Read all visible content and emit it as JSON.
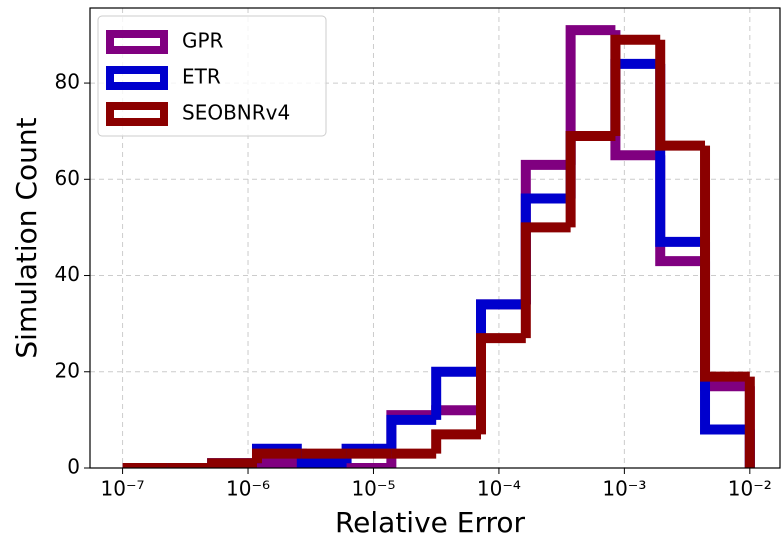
{
  "chart_data": {
    "type": "step-histogram",
    "xlabel": "Relative Error",
    "ylabel": "Simulation Count",
    "xscale": "log",
    "grid": true,
    "legend": "upper left",
    "bins": [
      1e-07,
      2.276e-07,
      5.179e-07,
      1.179e-06,
      2.683e-06,
      6.105e-06,
      1.389e-05,
      3.162e-05,
      7.197e-05,
      0.0001638,
      0.0003728,
      0.0008483,
      0.001931,
      0.004394,
      0.01
    ],
    "series": [
      {
        "name": "GPR",
        "color": "#800080",
        "values": [
          0,
          0,
          1,
          1,
          1,
          0,
          11,
          12,
          34,
          63,
          91,
          65,
          43,
          17
        ]
      },
      {
        "name": "ETR",
        "color": "#0000cd",
        "values": [
          0,
          0,
          1,
          4,
          1,
          4,
          10,
          20,
          34,
          56,
          69,
          84,
          47,
          8
        ]
      },
      {
        "name": "SEOBNRv4",
        "color": "#8b0000",
        "values": [
          0,
          0,
          1,
          3,
          3,
          3,
          3,
          7,
          27,
          50,
          69,
          89,
          67,
          19
        ]
      }
    ],
    "xlim": [
      5.5e-08,
      0.0174
    ],
    "xticks": [
      {
        "value": 1e-07,
        "label": "10⁻⁷"
      },
      {
        "value": 1e-06,
        "label": "10⁻⁶"
      },
      {
        "value": 1e-05,
        "label": "10⁻⁵"
      },
      {
        "value": 0.0001,
        "label": "10⁻⁴"
      },
      {
        "value": 0.001,
        "label": "10⁻³"
      },
      {
        "value": 0.01,
        "label": "10⁻²"
      }
    ],
    "ylim": [
      0,
      95.6
    ],
    "yticks": [
      0,
      20,
      40,
      60,
      80
    ]
  }
}
